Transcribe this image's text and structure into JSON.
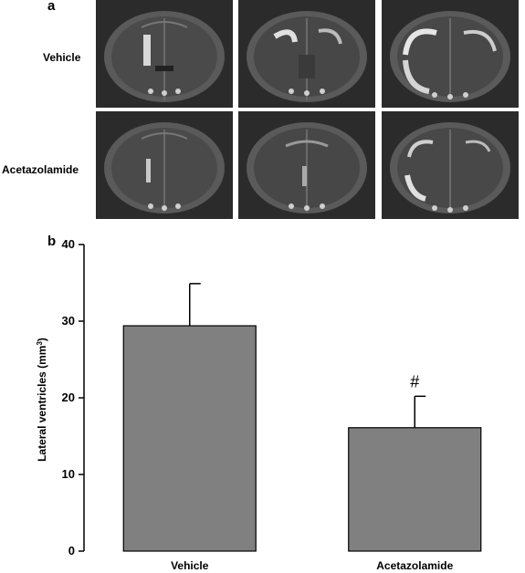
{
  "panel_a": {
    "label": "a",
    "rows": [
      {
        "label": "Vehicle"
      },
      {
        "label": "Acetazolamide"
      }
    ]
  },
  "panel_b": {
    "label": "b"
  },
  "chart_data": {
    "type": "bar",
    "categories": [
      "Vehicle",
      "Acetazolamide"
    ],
    "values": [
      29.4,
      16.1
    ],
    "errors": [
      5.5,
      4.1
    ],
    "annotations": [
      "",
      "#"
    ],
    "ylabel": "Lateral ventricles (mm³)",
    "ylabel_main": "Lateral ventricles (mm",
    "ylabel_sup": "3",
    "ylabel_end": ")",
    "ylim": [
      0,
      40
    ],
    "yticks": [
      0,
      10,
      20,
      30,
      40
    ],
    "bar_color": "#808080",
    "grid": false
  }
}
